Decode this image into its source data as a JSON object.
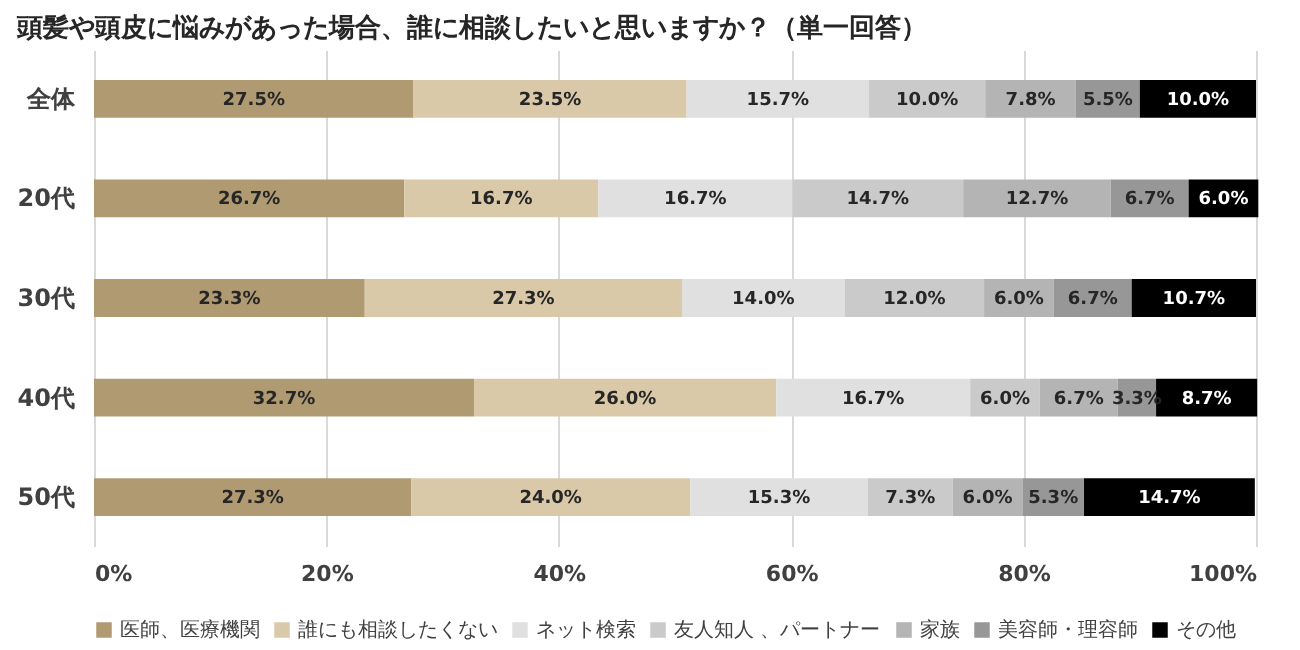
{
  "chart_data": {
    "type": "bar",
    "orientation": "horizontal",
    "stacked": true,
    "title": "頭髪や頭皮に悩みがあった場合、誰に相談したいと思いますか？（単一回答）",
    "categories": [
      "全体",
      "20代",
      "30代",
      "40代",
      "50代"
    ],
    "series": [
      {
        "name": "医師、医療機関",
        "color": "#b09a72",
        "values": [
          27.5,
          26.7,
          23.3,
          32.7,
          27.3
        ]
      },
      {
        "name": "誰にも相談したくない",
        "color": "#d9c9a8",
        "values": [
          23.5,
          16.7,
          27.3,
          26.0,
          24.0
        ]
      },
      {
        "name": "ネット検索",
        "color": "#e0e0e0",
        "values": [
          15.7,
          16.7,
          14.0,
          16.7,
          15.3
        ]
      },
      {
        "name": "友人知人 、パートナー",
        "color": "#cacaca",
        "values": [
          10.0,
          14.7,
          12.0,
          6.0,
          7.3
        ]
      },
      {
        "name": "家族",
        "color": "#b4b4b4",
        "values": [
          7.8,
          12.7,
          6.0,
          6.7,
          6.0
        ]
      },
      {
        "name": "美容師・理容師",
        "color": "#979797",
        "values": [
          5.5,
          6.7,
          6.7,
          3.3,
          5.3
        ]
      },
      {
        "name": "その他",
        "color": "#000000",
        "values": [
          10.0,
          6.0,
          10.7,
          8.7,
          14.7
        ]
      }
    ],
    "value_labels": [
      [
        "27.5%",
        "26.7%",
        "23.3%",
        "32.7%",
        "27.3%"
      ],
      [
        "23.5%",
        "16.7%",
        "27.3%",
        "26.0%",
        "24.0%"
      ],
      [
        "15.7%",
        "16.7%",
        "14.0%",
        "16.7%",
        "15.3%"
      ],
      [
        "10.0%",
        "14.7%",
        "12.0%",
        "6.0%",
        "7.3%"
      ],
      [
        "7.8%",
        "12.7%",
        "6.0%",
        "6.7%",
        "6.0%"
      ],
      [
        "5.5%",
        "6.7%",
        "6.7%",
        "3.3%",
        "5.3%"
      ],
      [
        "10.0%",
        "6.0%",
        "10.7%",
        "8.7%",
        "14.7%"
      ]
    ],
    "xlim": [
      0,
      100
    ],
    "xticks": [
      {
        "value": 0,
        "label": "0%"
      },
      {
        "value": 20,
        "label": "20%"
      },
      {
        "value": 40,
        "label": "40%"
      },
      {
        "value": 60,
        "label": "60%"
      },
      {
        "value": 80,
        "label": "80%"
      },
      {
        "value": 100,
        "label": "100%"
      }
    ],
    "grid": "x",
    "legend": "bottom"
  }
}
